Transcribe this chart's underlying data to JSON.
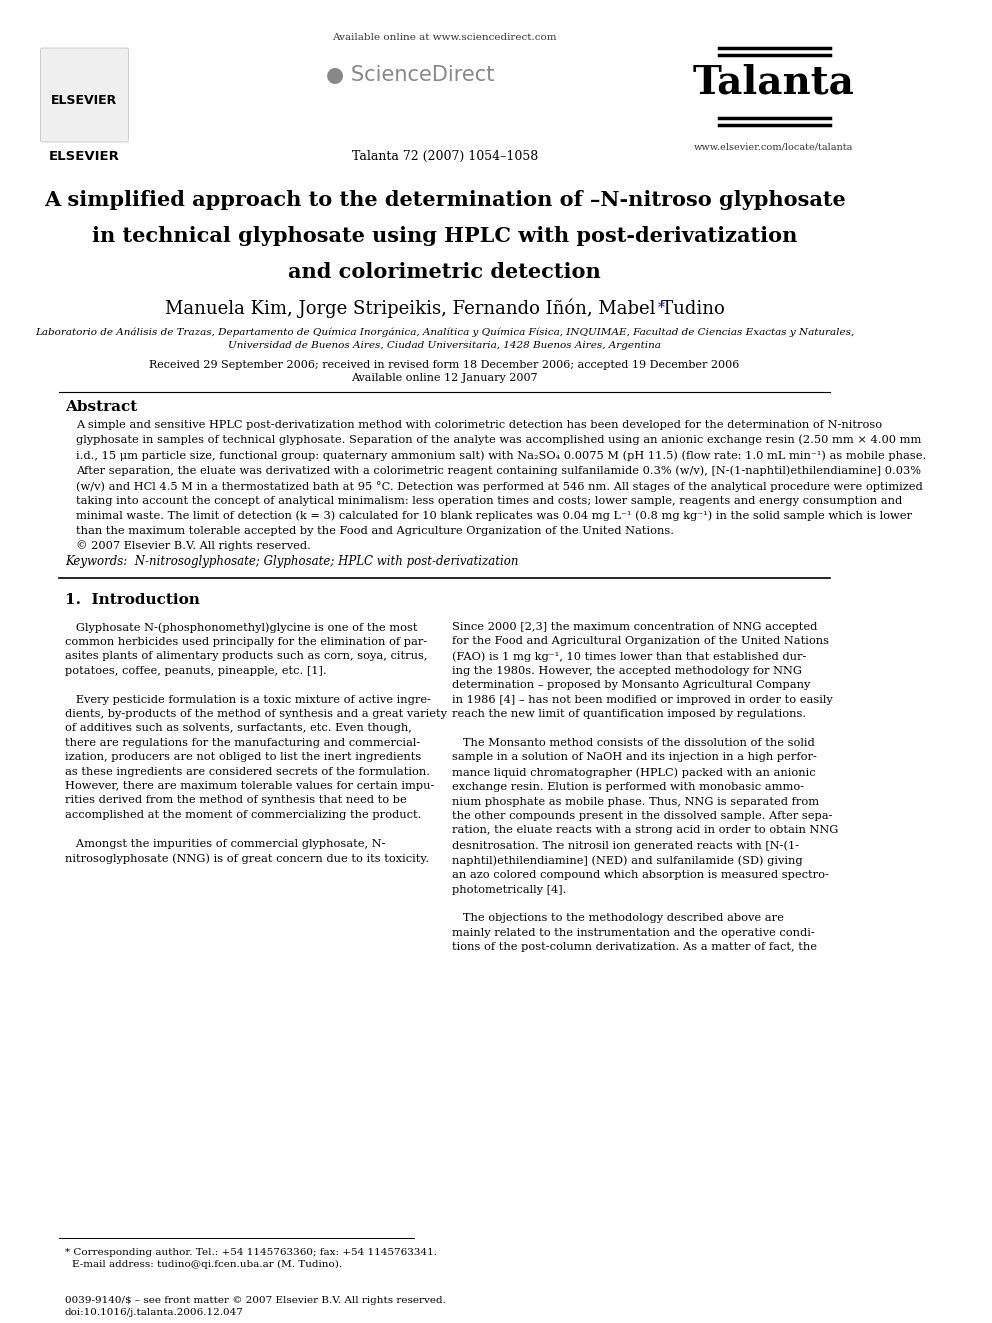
{
  "bg_color": "#ffffff",
  "header": {
    "available_online": "Available online at www.sciencedirect.com",
    "journal_citation": "Talanta 72 (2007) 1054–1058",
    "journal_name": "Talanta",
    "journal_url": "www.elsevier.com/locate/talanta"
  },
  "title": "A simplified approach to the determination of –N-nitroso glyphosate\nin technical glyphosate using HPLC with post-derivatization\nand colorimetric detection",
  "title_display": [
    "A simplified approach to the determination of –⁠N-nitroso glyphosate",
    "in technical glyphosate using HPLC with post-derivatization",
    "and colorimetric detection"
  ],
  "authors": "Manuela Kim, Jorge Stripeikis, Fernando Iñón, Mabel Tudino *",
  "affiliation_line1": "Laboratorio de Análisis de Trazas, Departamento de Química Inorgánica, Analítica y Química Física, INQUIMAE, Facultad de Ciencias Exactas y Naturales,",
  "affiliation_line2": "Universidad de Buenos Aires, Ciudad Universitaria, 1428 Buenos Aires, Argentina",
  "dates": "Received 29 September 2006; received in revised form 18 December 2006; accepted 19 December 2006",
  "available_online_date": "Available online 12 January 2007",
  "abstract_title": "Abstract",
  "abstract_text": "A simple and sensitive HPLC post-derivatization method with colorimetric detection has been developed for the determination of N-nitroso glyphosate in samples of technical glyphosate. Separation of the analyte was accomplished using an anionic exchange resin (2.50 mm × 4.00 mm i.d., 15 μm particle size, functional group: quaternary ammonium salt) with Na₂SO₄ 0.0075 M (pH 11.5) (flow rate: 1.0 mL min⁻¹) as mobile phase. After separation, the eluate was derivatized with a colorimetric reagent containing sulfanilamide 0.3% (w/v), [N-(1-naphtil)ethilendiamine] 0.03% (w/v) and HCl 4.5 M in a thermostatized bath at 95 °C. Detection was performed at 546 nm. All stages of the analytical procedure were optimized taking into account the concept of analytical minimalism: less operation times and costs; lower sample, reagents and energy consumption and minimal waste. The limit of detection (k = 3) calculated for 10 blank replicates was 0.04 mg L⁻¹ (0.8 mg kg⁻¹) in the solid sample which is lower than the maximum tolerable accepted by the Food and Agriculture Organization of the United Nations.\n© 2007 Elsevier B.V. All rights reserved.",
  "keywords": "Keywords:  N-nitrosoglyphosate; Glyphosate; HPLC with post-derivatization",
  "section1_title": "1.  Introduction",
  "section1_left": "Glyphosate N-(phosphonomethyl)glycine is one of the most common herbicides used principally for the elimination of parasites plants of alimentary products such as corn, soya, citrus, potatoes, coffee, peanuts, pineapple, etc. [1].\n\nEvery pesticide formulation is a toxic mixture of active ingredients, by-products of the method of synthesis and a great variety of additives such as solvents, surfactants, etc. Even though, there are regulations for the manufacturing and commercialization, producers are not obliged to list the inert ingredients as these ingredients are considered secrets of the formulation. However, there are maximum tolerable values for certain impurities derived from the method of synthesis that need to be accomplished at the moment of commercializing the product.\n\nAmongst the impurities of commercial glyphosate, N-nitrosoglyphosate (NNG) is of great concern due to its toxicity.",
  "section1_right": "Since 2000 [2,3] the maximum concentration of NNG accepted for the Food and Agricultural Organization of the United Nations (FAO) is 1 mg kg⁻¹, 10 times lower than that established during the 1980s. However, the accepted methodology for NNG determination – proposed by Monsanto Agricultural Company in 1986 [4] – has not been modified or improved in order to easily reach the new limit of quantification imposed by regulations.\n\nThe Monsanto method consists of the dissolution of the solid sample in a solution of NaOH and its injection in a high performance liquid chromatographer (HPLC) packed with an anionic exchange resin. Elution is performed with monobasic ammonium phosphate as mobile phase. Thus, NNG is separated from the other compounds present in the dissolved sample. After separation, the eluate reacts with a strong acid in order to obtain NNG desnitrosation. The nitrosil ion generated reacts with [N-(1-naphtil)ethilendiamine] (NED) and sulfanilamide (SD) giving an azo colored compound which absorption is measured spectrophotometrically [4].\n\nThe objections to the methodology described above are mainly related to the instrumentation and the operative conditions of the post-column derivatization. As a matter of fact, the",
  "footer_left": "* Corresponding author. Tel.: +54 1145763360; fax: +54 1145763341.\n  E-mail address: tudino@qi.fcen.uba.ar (M. Tudino).",
  "footer_bottom": "0039-9140/$ – see front matter © 2007 Elsevier B.V. All rights reserved.\ndoi:10.1016/j.talanta.2006.12.047"
}
